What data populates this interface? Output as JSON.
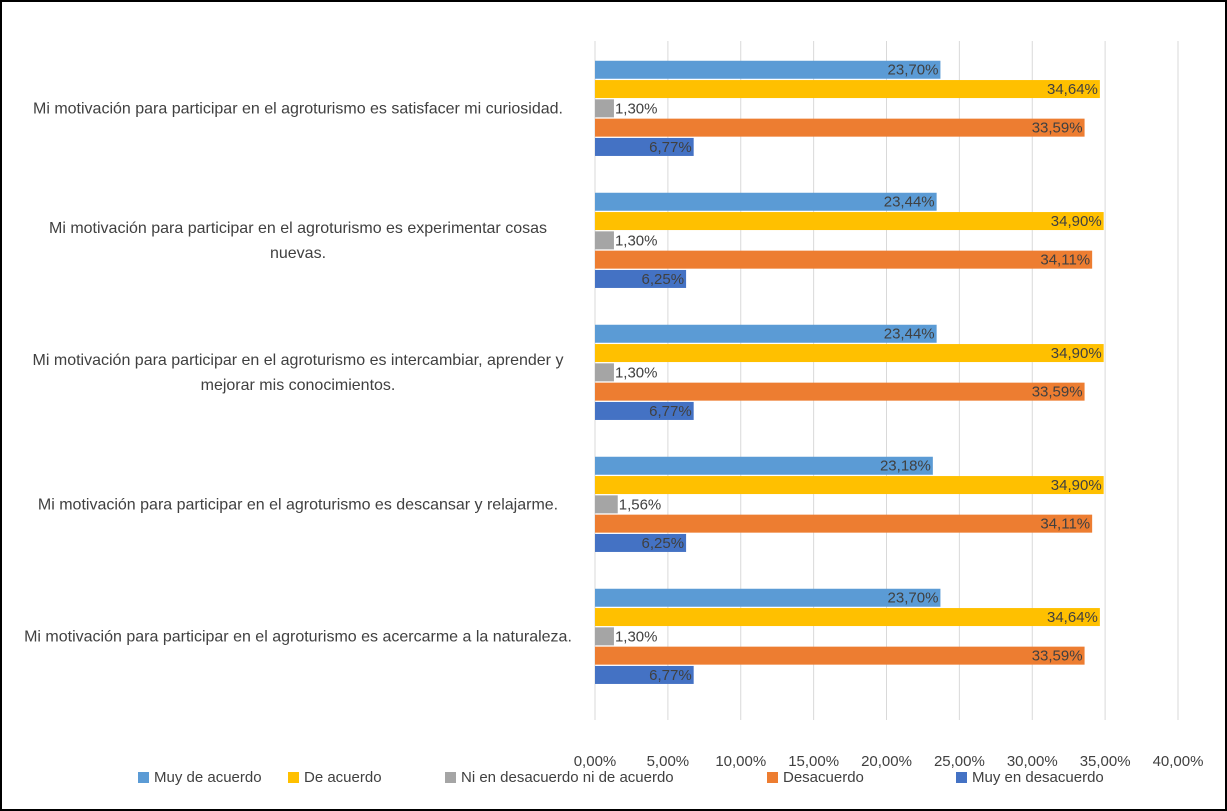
{
  "chart_data": {
    "type": "barh",
    "categories": [
      "Mi motivación para participar en el agroturismo es satisfacer mi curiosidad.",
      "Mi motivación para participar en el agroturismo es experimentar cosas nuevas.",
      "Mi motivación para participar en el agroturismo es intercambiar, aprender y mejorar mis conocimientos.",
      "Mi motivación para participar en el agroturismo es descansar y relajarme.",
      "Mi motivación para participar en el agroturismo es acercarme a la naturaleza."
    ],
    "series": [
      {
        "name": "Muy de acuerdo",
        "color": "#5B9BD5",
        "values": [
          23.7,
          23.44,
          23.44,
          23.18,
          23.7
        ],
        "value_labels": [
          "23,70%",
          "23,44%",
          "23,44%",
          "23,18%",
          "23,70%"
        ]
      },
      {
        "name": "De acuerdo",
        "color": "#FFC000",
        "values": [
          34.64,
          34.9,
          34.9,
          34.9,
          34.64
        ],
        "value_labels": [
          "34,64%",
          "34,90%",
          "34,90%",
          "34,90%",
          "34,64%"
        ]
      },
      {
        "name": "Ni en desacuerdo ni de acuerdo",
        "color": "#A5A5A5",
        "values": [
          1.3,
          1.3,
          1.3,
          1.56,
          1.3
        ],
        "value_labels": [
          "1,30%",
          "1,30%",
          "1,30%",
          "1,56%",
          "1,30%"
        ]
      },
      {
        "name": "Desacuerdo",
        "color": "#ED7D31",
        "values": [
          33.59,
          34.11,
          33.59,
          34.11,
          33.59
        ],
        "value_labels": [
          "33,59%",
          "34,11%",
          "33,59%",
          "34,11%",
          "33,59%"
        ]
      },
      {
        "name": "Muy en desacuerdo",
        "color": "#4472C4",
        "values": [
          6.77,
          6.25,
          6.77,
          6.25,
          6.77
        ],
        "value_labels": [
          "6,77%",
          "6,25%",
          "6,77%",
          "6,25%",
          "6,77%"
        ]
      }
    ],
    "xlim": [
      0,
      40
    ],
    "xticks": [
      {
        "value": 0,
        "label": "0,00%"
      },
      {
        "value": 5,
        "label": "5,00%"
      },
      {
        "value": 10,
        "label": "10,00%"
      },
      {
        "value": 15,
        "label": "15,00%"
      },
      {
        "value": 20,
        "label": "20,00%"
      },
      {
        "value": 25,
        "label": "25,00%"
      },
      {
        "value": 30,
        "label": "30,00%"
      },
      {
        "value": 35,
        "label": "35,00%"
      },
      {
        "value": 40,
        "label": "40,00%"
      }
    ],
    "grid": true,
    "legend": "bottom"
  }
}
